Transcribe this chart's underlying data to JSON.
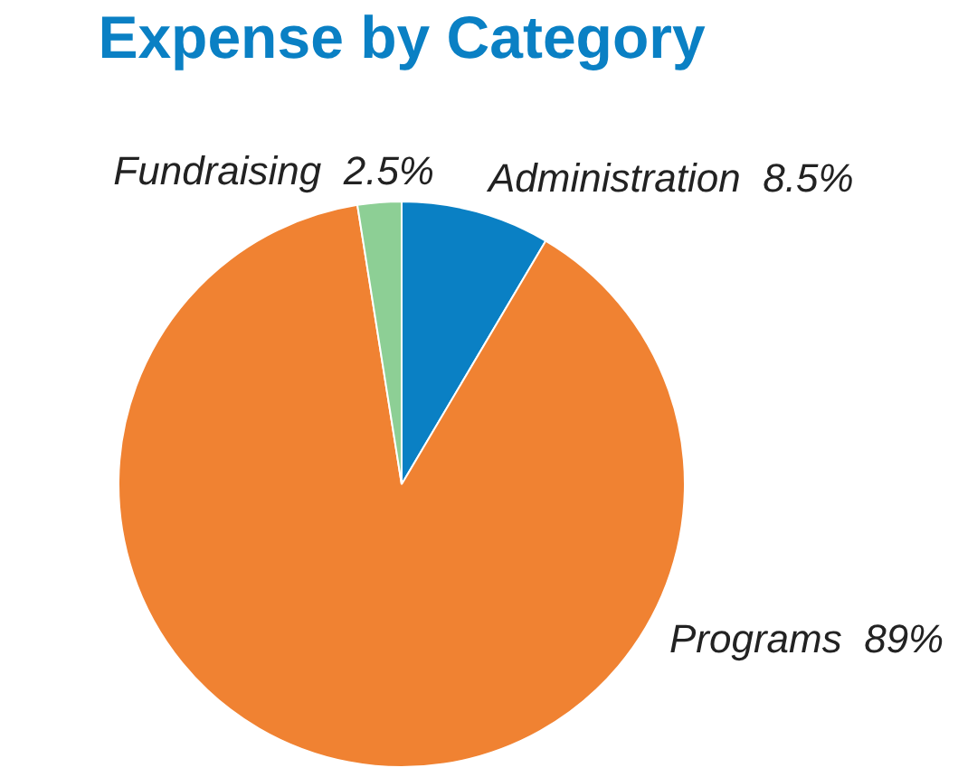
{
  "chart_data": {
    "type": "pie",
    "title": "Expense by Category",
    "categories": [
      "Administration",
      "Programs",
      "Fundraising"
    ],
    "values": [
      8.5,
      89,
      2.5
    ],
    "value_labels": [
      "8.5%",
      "89%",
      "2.5%"
    ],
    "colors": [
      "#0a80c4",
      "#f08232",
      "#8dcf95"
    ],
    "legend": false
  }
}
